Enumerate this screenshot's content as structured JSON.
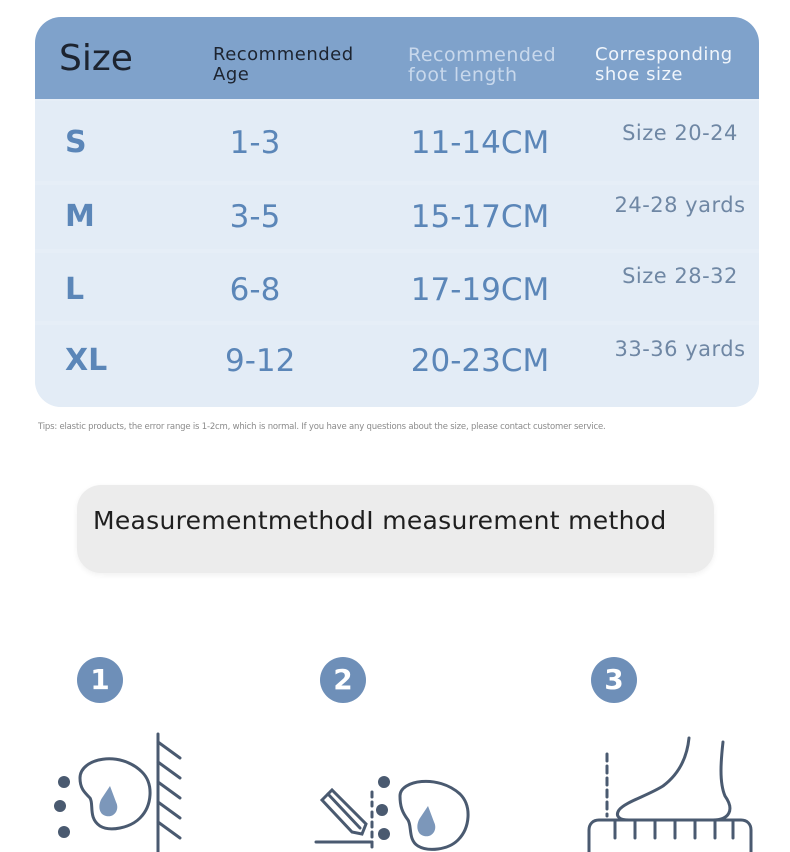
{
  "table": {
    "headers": {
      "size": "Size",
      "age": "Recommended Age",
      "foot_length": "Recommended foot length",
      "shoe_size": "Corresponding shoe size"
    },
    "rows": [
      {
        "size": "S",
        "age": "1-3",
        "foot_length": "11-14CM",
        "shoe_size": "Size 20-24"
      },
      {
        "size": "M",
        "age": "3-5",
        "foot_length": "15-17CM",
        "shoe_size": "24-28 yards"
      },
      {
        "size": "L",
        "age": "6-8",
        "foot_length": "17-19CM",
        "shoe_size": "Size 28-32"
      },
      {
        "size": "XL",
        "age": "9-12",
        "foot_length": "20-23CM",
        "shoe_size": "33-36 yards"
      }
    ]
  },
  "tip": "Tips: elastic products, the error range is 1-2cm, which is normal. If you have any questions about the size, please contact customer service.",
  "method": {
    "title": "MeasurementmethodI measurement method"
  },
  "steps": [
    {
      "number": "1",
      "icon": "foot-against-wall-icon"
    },
    {
      "number": "2",
      "icon": "pencil-mark-heel-icon"
    },
    {
      "number": "3",
      "icon": "foot-on-ruler-icon"
    }
  ],
  "colors": {
    "header_bg": "#7fa2cb",
    "table_bg": "#e6eef7",
    "cell_text": "#5b86b8",
    "step_badge": "#6e8fb8"
  }
}
